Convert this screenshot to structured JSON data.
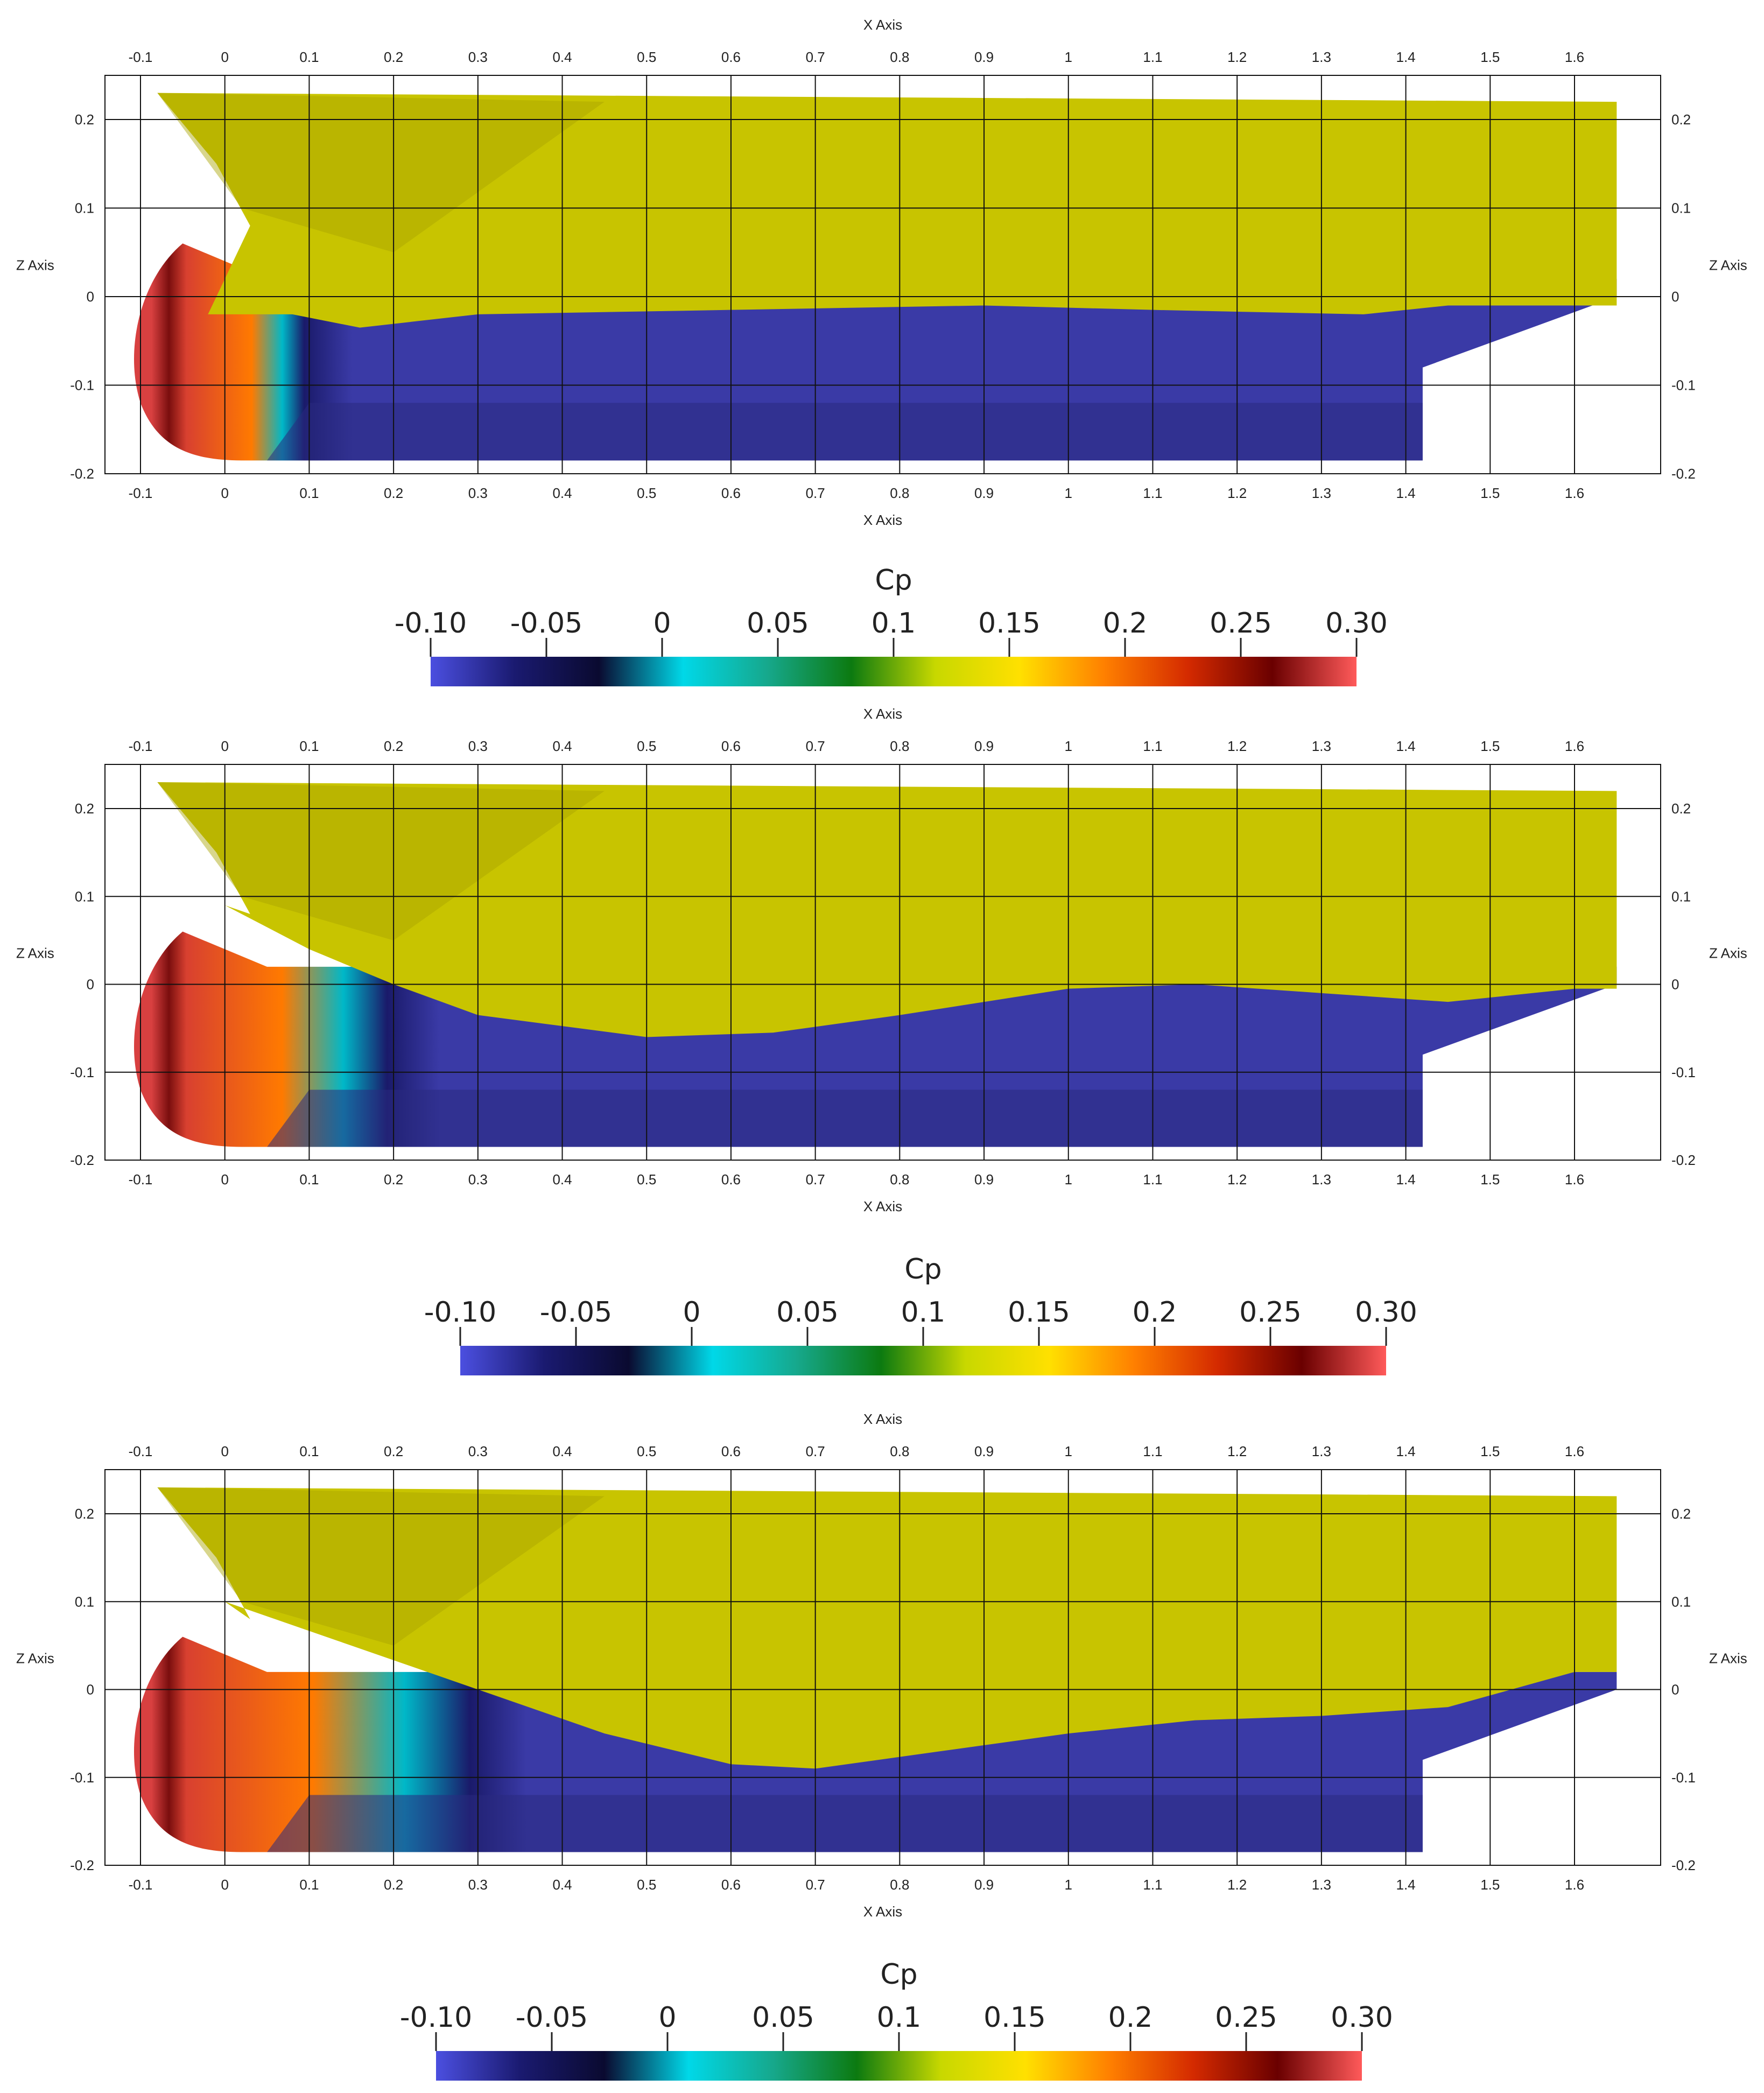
{
  "colors": {
    "hull_above": "#c8c400",
    "hull_shade": "#a8a400",
    "hull_below": "#3a3aa6",
    "hull_below_dark": "#2a2a80",
    "grid": "#111111",
    "cmap": [
      "#4b4fe0",
      "#1a1a70",
      "#0a0a30",
      "#00d8e8",
      "#16a88c",
      "#0c7a10",
      "#c8d800",
      "#ffe000",
      "#ff8000",
      "#d42a00",
      "#6a0000",
      "#ff5a5a"
    ]
  },
  "chart_data": [
    {
      "type": "heatmap",
      "xlabel": "X Axis",
      "ylabel": "Z Axis",
      "xticks": [
        -0.1,
        0,
        0.1,
        0.2,
        0.3,
        0.4,
        0.5,
        0.6,
        0.7,
        0.8,
        0.9,
        1,
        1.1,
        1.2,
        1.3,
        1.4,
        1.5,
        1.6
      ],
      "xtick_labels": [
        "-0.1",
        "0",
        "0.1",
        "0.2",
        "0.3",
        "0.4",
        "0.5",
        "0.6",
        "0.7",
        "0.8",
        "0.9",
        "1",
        "1.1",
        "1.2",
        "1.3",
        "1.4",
        "1.5",
        "1.6"
      ],
      "zticks": [
        0.2,
        0.1,
        0,
        -0.1,
        -0.2
      ],
      "ztick_labels": [
        "0.2",
        "0.1",
        "0",
        "-0.1",
        "-0.2"
      ],
      "xlim": [
        -0.15,
        1.7
      ],
      "zlim": [
        -0.2,
        0.25
      ],
      "grid": true,
      "waterline": [
        [
          -0.02,
          -0.02
        ],
        [
          0.08,
          -0.02
        ],
        [
          0.16,
          -0.035
        ],
        [
          0.3,
          -0.02
        ],
        [
          0.6,
          -0.015
        ],
        [
          0.9,
          -0.01
        ],
        [
          1.1,
          -0.015
        ],
        [
          1.35,
          -0.02
        ],
        [
          1.45,
          -0.01
        ]
      ],
      "bow_high_cp_extent_x": 0.1,
      "colorbar": {
        "title": "Cp",
        "ticks": [
          -0.1,
          -0.05,
          0,
          0.05,
          0.1,
          0.15,
          0.2,
          0.25,
          0.3
        ],
        "tick_labels": [
          "-0.10",
          "-0.05",
          "0",
          "0.05",
          "0.1",
          "0.15",
          "0.2",
          "0.25",
          "0.30"
        ],
        "range": [
          -0.1,
          0.3
        ]
      }
    },
    {
      "type": "heatmap",
      "xlabel": "X Axis",
      "ylabel": "Z Axis",
      "xticks": [
        -0.1,
        0,
        0.1,
        0.2,
        0.3,
        0.4,
        0.5,
        0.6,
        0.7,
        0.8,
        0.9,
        1,
        1.1,
        1.2,
        1.3,
        1.4,
        1.5,
        1.6
      ],
      "xtick_labels": [
        "-0.1",
        "0",
        "0.1",
        "0.2",
        "0.3",
        "0.4",
        "0.5",
        "0.6",
        "0.7",
        "0.8",
        "0.9",
        "1",
        "1.1",
        "1.2",
        "1.3",
        "1.4",
        "1.5",
        "1.6"
      ],
      "zticks": [
        0.2,
        0.1,
        0,
        -0.1,
        -0.2
      ],
      "ztick_labels": [
        "0.2",
        "0.1",
        "0",
        "-0.1",
        "-0.2"
      ],
      "xlim": [
        -0.15,
        1.7
      ],
      "zlim": [
        -0.2,
        0.25
      ],
      "grid": true,
      "waterline": [
        [
          0.0,
          0.09
        ],
        [
          0.1,
          0.04
        ],
        [
          0.2,
          0.0
        ],
        [
          0.3,
          -0.035
        ],
        [
          0.5,
          -0.06
        ],
        [
          0.65,
          -0.055
        ],
        [
          0.8,
          -0.035
        ],
        [
          1.0,
          -0.005
        ],
        [
          1.15,
          0.0
        ],
        [
          1.3,
          -0.01
        ],
        [
          1.45,
          -0.02
        ],
        [
          1.6,
          -0.005
        ]
      ],
      "bow_high_cp_extent_x": 0.2,
      "colorbar": {
        "title": "Cp",
        "ticks": [
          -0.1,
          -0.05,
          0,
          0.05,
          0.1,
          0.15,
          0.2,
          0.25,
          0.3
        ],
        "tick_labels": [
          "-0.10",
          "-0.05",
          "0",
          "0.05",
          "0.1",
          "0.15",
          "0.2",
          "0.25",
          "0.30"
        ],
        "range": [
          -0.1,
          0.3
        ]
      }
    },
    {
      "type": "heatmap",
      "xlabel": "X Axis",
      "ylabel": "Z Axis",
      "xticks": [
        -0.1,
        0,
        0.1,
        0.2,
        0.3,
        0.4,
        0.5,
        0.6,
        0.7,
        0.8,
        0.9,
        1,
        1.1,
        1.2,
        1.3,
        1.4,
        1.5,
        1.6
      ],
      "xtick_labels": [
        "-0.1",
        "0",
        "0.1",
        "0.2",
        "0.3",
        "0.4",
        "0.5",
        "0.6",
        "0.7",
        "0.8",
        "0.9",
        "1",
        "1.1",
        "1.2",
        "1.3",
        "1.4",
        "1.5",
        "1.6"
      ],
      "zticks": [
        0.2,
        0.1,
        0,
        -0.1,
        -0.2
      ],
      "ztick_labels": [
        "0.2",
        "0.1",
        "0",
        "-0.1",
        "-0.2"
      ],
      "xlim": [
        -0.15,
        1.7
      ],
      "zlim": [
        -0.2,
        0.25
      ],
      "grid": true,
      "waterline": [
        [
          0.0,
          0.1
        ],
        [
          0.15,
          0.05
        ],
        [
          0.3,
          0.0
        ],
        [
          0.45,
          -0.05
        ],
        [
          0.6,
          -0.085
        ],
        [
          0.7,
          -0.09
        ],
        [
          0.85,
          -0.07
        ],
        [
          1.0,
          -0.05
        ],
        [
          1.15,
          -0.035
        ],
        [
          1.3,
          -0.03
        ],
        [
          1.45,
          -0.02
        ],
        [
          1.6,
          0.02
        ]
      ],
      "bow_high_cp_extent_x": 0.3,
      "colorbar": {
        "title": "Cp",
        "ticks": [
          -0.1,
          -0.05,
          0,
          0.05,
          0.1,
          0.15,
          0.2,
          0.25,
          0.3
        ],
        "tick_labels": [
          "-0.10",
          "-0.05",
          "0",
          "0.05",
          "0.1",
          "0.15",
          "0.2",
          "0.25",
          "0.30"
        ],
        "range": [
          -0.1,
          0.3
        ]
      }
    }
  ]
}
